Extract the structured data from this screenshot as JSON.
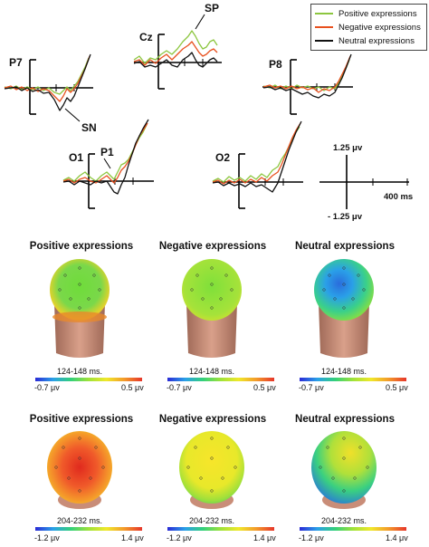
{
  "legend": {
    "items": [
      {
        "label": "Positive expressions",
        "color": "#8cc63f"
      },
      {
        "label": "Negative expressions",
        "color": "#e8501e"
      },
      {
        "label": "Neutral expressions",
        "color": "#111111"
      }
    ]
  },
  "channels": {
    "p7": "P7",
    "cz": "Cz",
    "p8": "P8",
    "o1": "O1",
    "o2": "O2"
  },
  "annotations": {
    "sp": "SP",
    "sn": "SN",
    "p1": "P1"
  },
  "scale": {
    "top": "1.25 μv",
    "bottom": "- 1.25 μv",
    "time": "400 ms"
  },
  "maps": {
    "row1": {
      "range": "124-148 ms.",
      "cbar_min": "-0.7 μv",
      "cbar_max": "0.5 μv",
      "items": [
        {
          "title": "Positive expressions"
        },
        {
          "title": "Negative expressions"
        },
        {
          "title": "Neutral expressions"
        }
      ]
    },
    "row2": {
      "range": "204-232 ms.",
      "cbar_min": "-1.2 μv",
      "cbar_max": "1.4 μv",
      "items": [
        {
          "title": "Positive expressions"
        },
        {
          "title": "Negative expressions"
        },
        {
          "title": "Neutral expressions"
        }
      ]
    }
  },
  "colors": {
    "positive": "#8cc63f",
    "negative": "#e8501e",
    "neutral": "#111111",
    "skin": "#c98d78"
  }
}
